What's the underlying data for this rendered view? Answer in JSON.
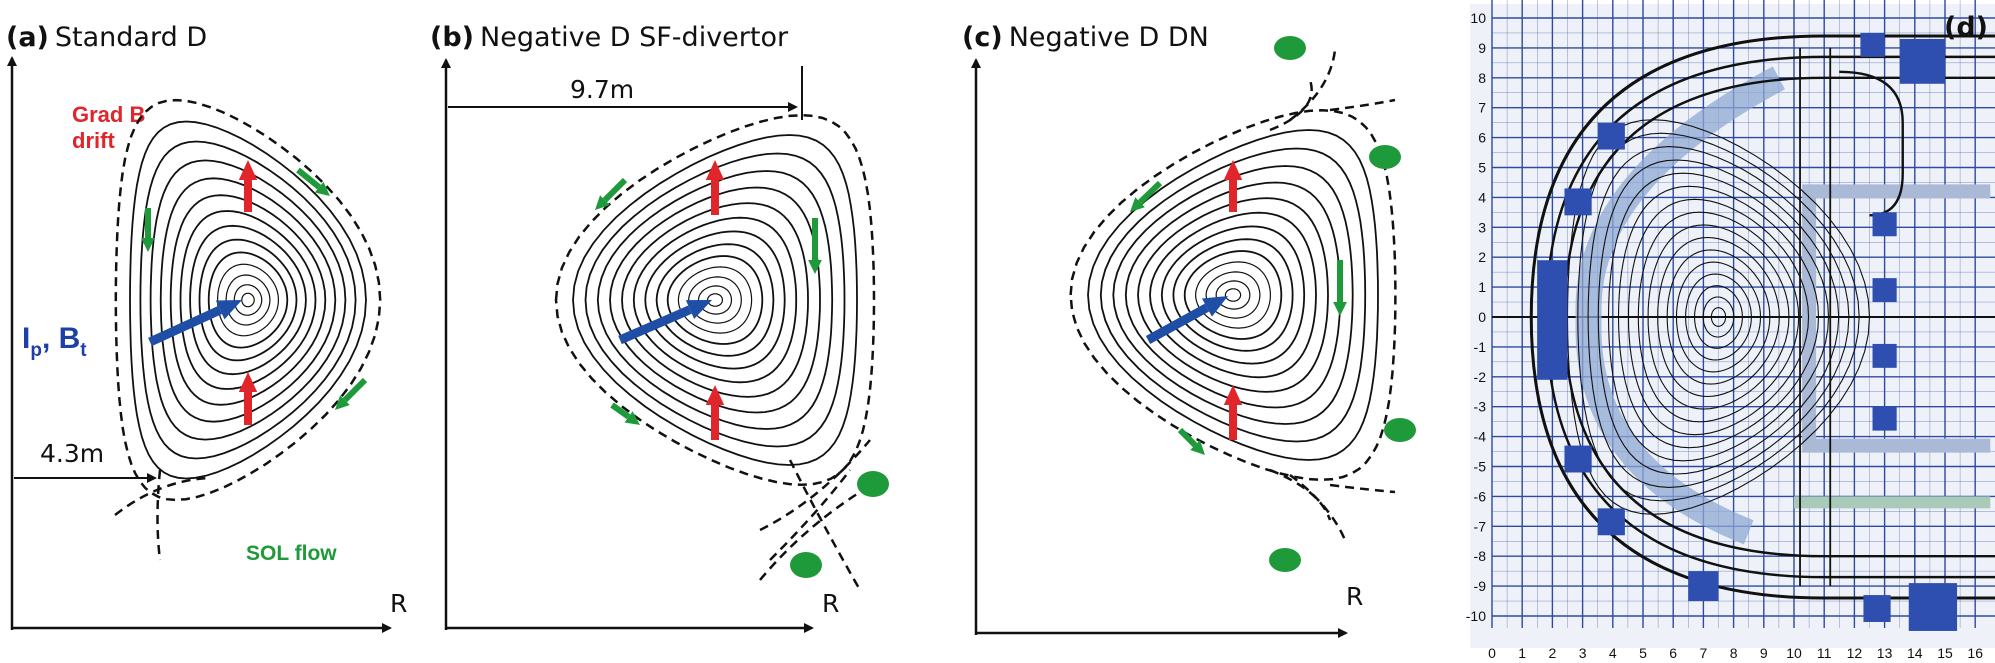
{
  "panels": {
    "a": {
      "letter": "(a)",
      "title": "Standard D",
      "grad_b_line1": "Grad B",
      "grad_b_line2": "drift",
      "current_ip": "I",
      "current_ip_sub": "p",
      "current_sep": ", ",
      "current_bt": "B",
      "current_bt_sub": "t",
      "dimension": "4.3m",
      "sol_flow": "SOL flow",
      "axis_label": "R"
    },
    "b": {
      "letter": "(b)",
      "title": "Negative D  SF-divertor",
      "dimension": "9.7m",
      "axis_label": "R"
    },
    "c": {
      "letter": "(c)",
      "title": "Negative D DN",
      "axis_label": "R"
    },
    "d": {
      "letter": "(d)",
      "y_ticks": [
        "10",
        "9",
        "8",
        "7",
        "6",
        "5",
        "4",
        "3",
        "2",
        "1",
        "0",
        "-1",
        "-2",
        "-3",
        "-4",
        "-5",
        "-6",
        "-7",
        "-8",
        "-9",
        "-10"
      ],
      "x_ticks": [
        "0",
        "1",
        "2",
        "3",
        "4",
        "5",
        "6",
        "7",
        "8",
        "9",
        "10",
        "11",
        "12",
        "13",
        "14",
        "15",
        "16"
      ]
    }
  },
  "colors": {
    "arrow_red": "#e0252b",
    "arrow_green": "#1f9a3b",
    "arrow_blue": "#1e4ea6",
    "grid": "#2d4aa0",
    "coil": "#2e4fb0",
    "shade": "#8fa8d4"
  }
}
